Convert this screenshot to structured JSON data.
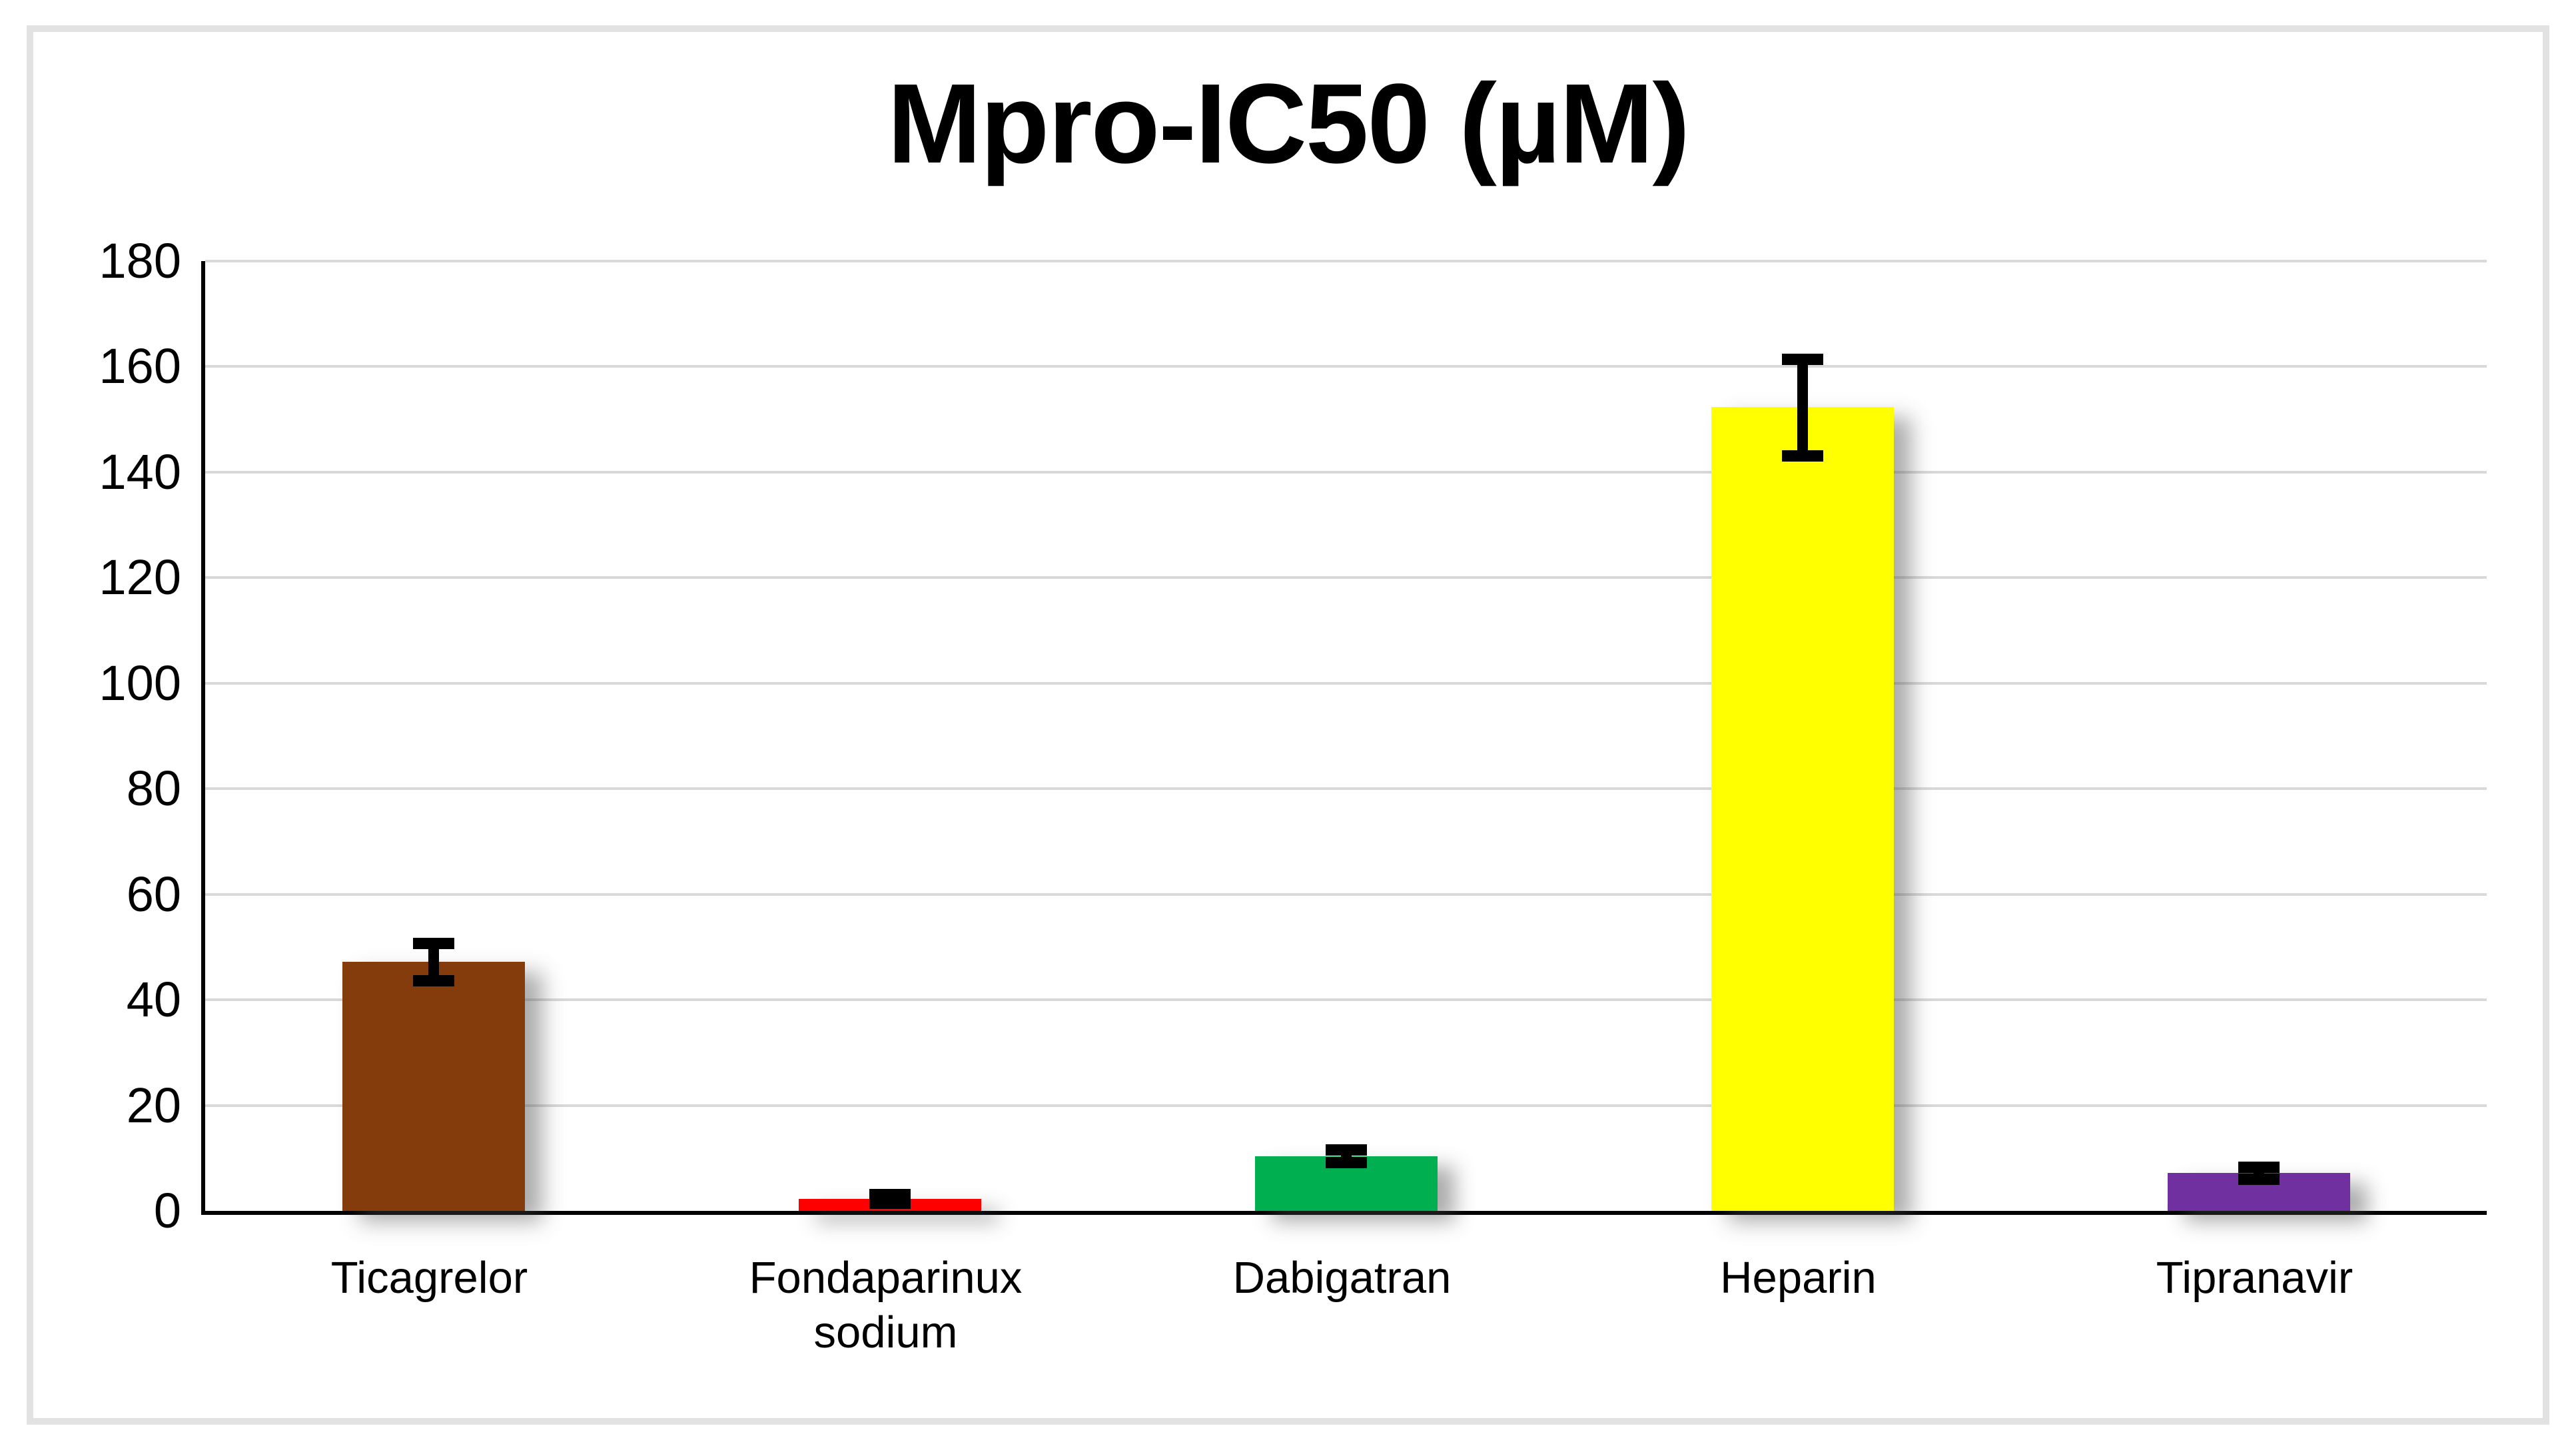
{
  "chart_data": {
    "type": "bar",
    "title": "Mpro-IC50 (µM)",
    "categories": [
      "Ticagrelor",
      "Fondaparinux sodium",
      "Dabigatran",
      "Heparin",
      "Tipranavir"
    ],
    "values": [
      47.2,
      2.3,
      10.4,
      152.3,
      7.2
    ],
    "errors": [
      3.5,
      0.8,
      1.2,
      9.1,
      1.1
    ],
    "series": [
      {
        "name": "Mpro-IC50 (µM)",
        "values": [
          47.2,
          2.3,
          10.4,
          152.3,
          7.2
        ],
        "error_bars": [
          3.5,
          0.8,
          1.2,
          9.1,
          1.1
        ]
      }
    ],
    "bar_colors": [
      "#843C0C",
      "#FF0000",
      "#00B050",
      "#FFFF00",
      "#7030A0"
    ],
    "xlabel": "",
    "ylabel": "",
    "ylim": [
      0,
      180
    ],
    "ytick_step": 20,
    "yticks": [
      0,
      20,
      40,
      60,
      80,
      100,
      120,
      140,
      160,
      180
    ],
    "grid": true,
    "legend": "none",
    "gridline_color": "#D9D9D9",
    "axis_color": "#000000",
    "error_bar_color": "#000000",
    "frame_border_color": "#E2E2E2",
    "background_color": "#FFFFFF"
  }
}
